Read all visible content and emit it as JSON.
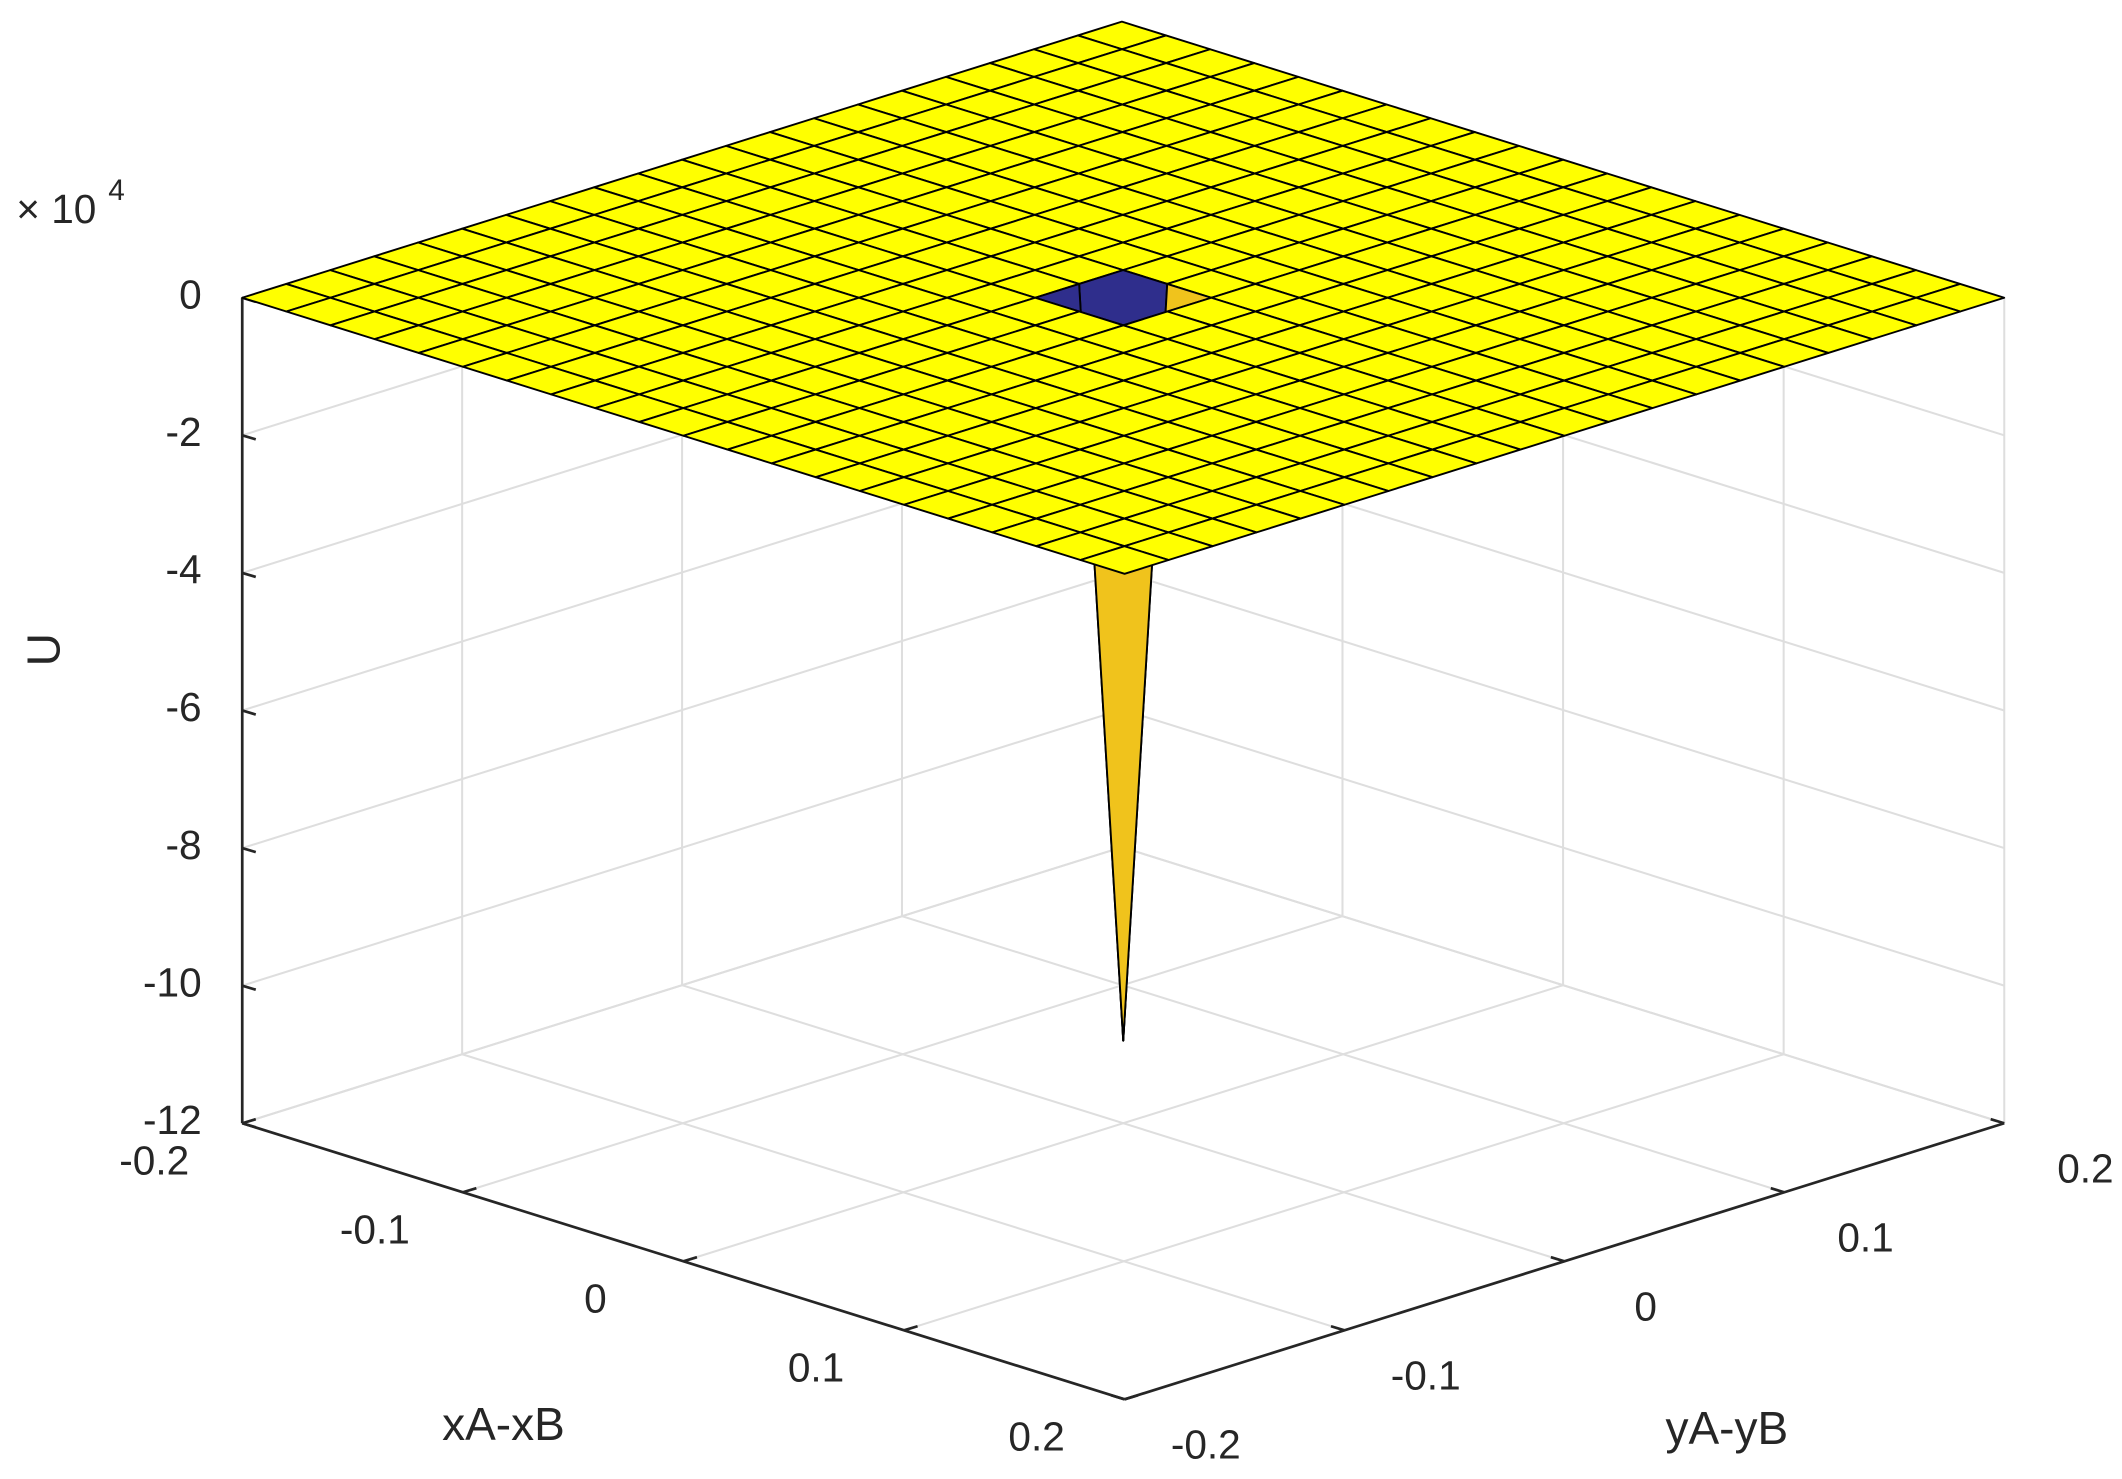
{
  "chart_data": {
    "type": "surface",
    "xlabel": "xA-xB",
    "ylabel": "yA-yB",
    "zlabel": "U",
    "z_multiplier": "× 10",
    "z_multiplier_exponent": "4",
    "xlim": [
      -0.2,
      0.2
    ],
    "ylim": [
      -0.2,
      0.2
    ],
    "zlim": [
      -12,
      0
    ],
    "xticks": [
      -0.2,
      -0.1,
      0,
      0.1,
      0.2
    ],
    "yticks": [
      -0.2,
      -0.1,
      0,
      0.1,
      0.2
    ],
    "zticks": [
      -12,
      -10,
      -8,
      -6,
      -4,
      -2,
      0
    ],
    "grid": true,
    "color": "#ffff00",
    "lit_color": "#f0c31c",
    "shadow_color": "#2f2e8c",
    "x": [
      -0.2,
      -0.18,
      -0.16,
      -0.14,
      -0.12,
      -0.1,
      -0.08,
      -0.06,
      -0.04,
      -0.02,
      0,
      0.02,
      0.04,
      0.06,
      0.08,
      0.1,
      0.12,
      0.14,
      0.16,
      0.18,
      0.2
    ],
    "y": [
      -0.2,
      -0.18,
      -0.16,
      -0.14,
      -0.12,
      -0.1,
      -0.08,
      -0.06,
      -0.04,
      -0.02,
      0,
      0.02,
      0.04,
      0.06,
      0.08,
      0.1,
      0.12,
      0.14,
      0.16,
      0.18,
      0.2
    ],
    "z": [
      [
        0,
        0,
        0,
        0,
        0,
        0,
        0,
        0,
        0,
        0,
        0,
        0,
        0,
        0,
        0,
        0,
        0,
        0,
        0,
        0,
        0
      ],
      [
        0,
        0,
        0,
        0,
        0,
        0,
        0,
        0,
        0,
        0,
        0,
        0,
        0,
        0,
        0,
        0,
        0,
        0,
        0,
        0,
        0
      ],
      [
        0,
        0,
        0,
        0,
        0,
        0,
        0,
        0,
        0,
        0,
        0,
        0,
        0,
        0,
        0,
        0,
        0,
        0,
        0,
        0,
        0
      ],
      [
        0,
        0,
        0,
        0,
        0,
        0,
        0,
        0,
        0,
        0,
        0,
        0,
        0,
        0,
        0,
        0,
        0,
        0,
        0,
        0,
        0
      ],
      [
        0,
        0,
        0,
        0,
        0,
        0,
        0,
        0,
        0,
        0,
        0,
        0,
        0,
        0,
        0,
        0,
        0,
        0,
        0,
        0,
        0
      ],
      [
        0,
        0,
        0,
        0,
        0,
        0,
        0,
        0,
        0,
        0,
        0,
        0,
        0,
        0,
        0,
        0,
        0,
        0,
        0,
        0,
        0
      ],
      [
        0,
        0,
        0,
        0,
        0,
        0,
        0,
        0,
        0,
        0,
        0,
        0,
        0,
        0,
        0,
        0,
        0,
        0,
        0,
        0,
        0
      ],
      [
        0,
        0,
        0,
        0,
        0,
        0,
        0,
        0,
        0,
        0,
        0,
        0,
        0,
        0,
        0,
        0,
        0,
        0,
        0,
        0,
        0
      ],
      [
        0,
        0,
        0,
        0,
        0,
        0,
        0,
        0,
        0,
        0,
        0,
        0,
        0,
        0,
        0,
        0,
        0,
        0,
        0,
        0,
        0
      ],
      [
        0,
        0,
        0,
        0,
        0,
        0,
        0,
        0,
        0,
        0,
        0,
        0,
        0,
        0,
        0,
        0,
        0,
        0,
        0,
        0,
        0
      ],
      [
        0,
        0,
        0,
        0,
        0,
        0,
        0,
        0,
        0,
        0,
        -10.8,
        0,
        0,
        0,
        0,
        0,
        0,
        0,
        0,
        0,
        0
      ],
      [
        0,
        0,
        0,
        0,
        0,
        0,
        0,
        0,
        0,
        0,
        0,
        0,
        0,
        0,
        0,
        0,
        0,
        0,
        0,
        0,
        0
      ],
      [
        0,
        0,
        0,
        0,
        0,
        0,
        0,
        0,
        0,
        0,
        0,
        0,
        0,
        0,
        0,
        0,
        0,
        0,
        0,
        0,
        0
      ],
      [
        0,
        0,
        0,
        0,
        0,
        0,
        0,
        0,
        0,
        0,
        0,
        0,
        0,
        0,
        0,
        0,
        0,
        0,
        0,
        0,
        0
      ],
      [
        0,
        0,
        0,
        0,
        0,
        0,
        0,
        0,
        0,
        0,
        0,
        0,
        0,
        0,
        0,
        0,
        0,
        0,
        0,
        0,
        0
      ],
      [
        0,
        0,
        0,
        0,
        0,
        0,
        0,
        0,
        0,
        0,
        0,
        0,
        0,
        0,
        0,
        0,
        0,
        0,
        0,
        0,
        0
      ],
      [
        0,
        0,
        0,
        0,
        0,
        0,
        0,
        0,
        0,
        0,
        0,
        0,
        0,
        0,
        0,
        0,
        0,
        0,
        0,
        0,
        0
      ],
      [
        0,
        0,
        0,
        0,
        0,
        0,
        0,
        0,
        0,
        0,
        0,
        0,
        0,
        0,
        0,
        0,
        0,
        0,
        0,
        0,
        0
      ],
      [
        0,
        0,
        0,
        0,
        0,
        0,
        0,
        0,
        0,
        0,
        0,
        0,
        0,
        0,
        0,
        0,
        0,
        0,
        0,
        0,
        0
      ],
      [
        0,
        0,
        0,
        0,
        0,
        0,
        0,
        0,
        0,
        0,
        0,
        0,
        0,
        0,
        0,
        0,
        0,
        0,
        0,
        0,
        0
      ],
      [
        0,
        0,
        0,
        0,
        0,
        0,
        0,
        0,
        0,
        0,
        0,
        0,
        0,
        0,
        0,
        0,
        0,
        0,
        0,
        0,
        0
      ]
    ]
  }
}
